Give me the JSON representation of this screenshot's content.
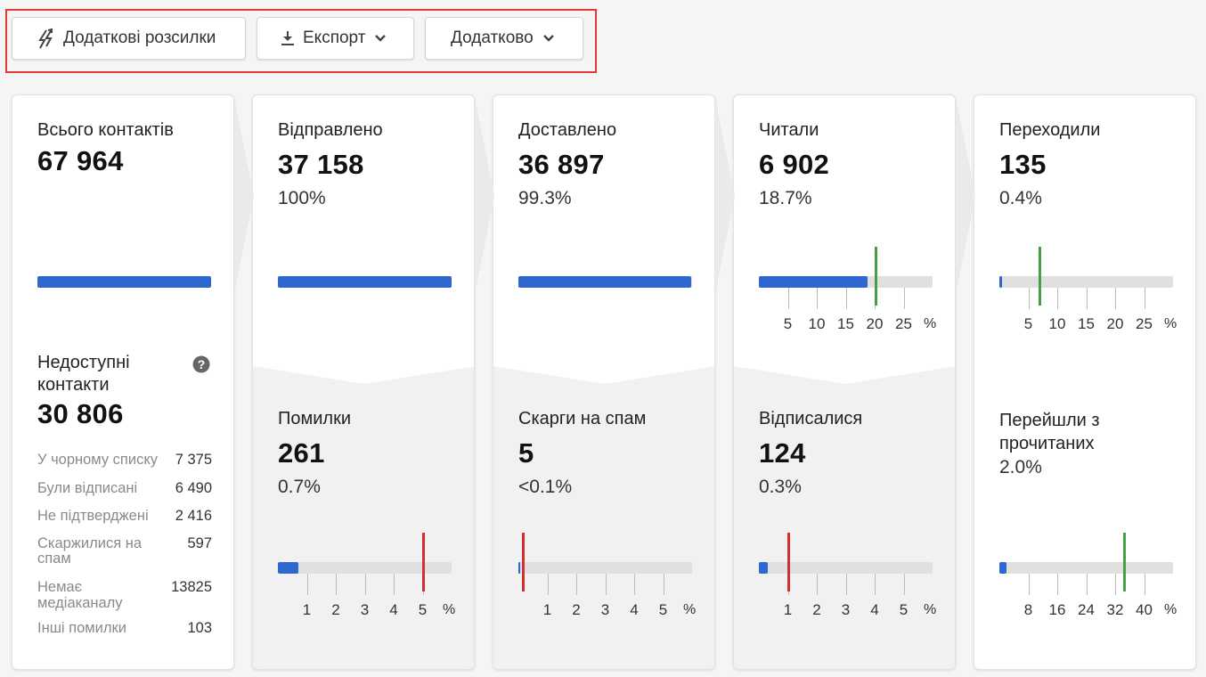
{
  "toolbar": {
    "extra_mailings_label": "Додаткові розсилки",
    "export_label": "Експорт",
    "more_label": "Додатково",
    "highlight_color": "#e53935"
  },
  "colors": {
    "bar_blue": "#2f67d1",
    "benchmark_green": "#43a047",
    "benchmark_red": "#d32f2f",
    "track_grey": "#e0e0e0"
  },
  "total": {
    "label": "Всього контактів",
    "value": "67 964",
    "fill_fraction": 1.0,
    "unavailable_label": "Недоступні контакти",
    "unavailable_value": "30 806",
    "help_icon": "question-circle-icon",
    "breakdown": [
      {
        "label": "У чорному списку",
        "value": "7 375"
      },
      {
        "label": "Були відписані",
        "value": "6 490"
      },
      {
        "label": "Не підтверджені",
        "value": "2 416"
      },
      {
        "label": "Скаржилися на спам",
        "value": "597"
      },
      {
        "label": "Немає медіаканалу",
        "value": "13825"
      },
      {
        "label": "Інші помилки",
        "value": "103"
      }
    ]
  },
  "sent": {
    "label": "Відправлено",
    "value": "37 158",
    "pct": "100%",
    "fill_fraction": 1.0,
    "sub": {
      "label": "Помилки",
      "value": "261",
      "pct": "0.7%",
      "ticks": [
        "1",
        "2",
        "3",
        "4",
        "5"
      ],
      "unit": "%",
      "fill_pct": 0.7,
      "benchmark_pct": 5,
      "scale_max": 6
    }
  },
  "delivered": {
    "label": "Доставлено",
    "value": "36 897",
    "pct": "99.3%",
    "fill_fraction": 0.993,
    "sub": {
      "label": "Скарги на спам",
      "value": "5",
      "pct": "<0.1%",
      "ticks": [
        "1",
        "2",
        "3",
        "4",
        "5"
      ],
      "unit": "%",
      "fill_pct": 0.02,
      "benchmark_pct": 0.15,
      "scale_max": 6
    }
  },
  "read": {
    "label": "Читали",
    "value": "6 902",
    "pct": "18.7%",
    "ticks": [
      "5",
      "10",
      "15",
      "20",
      "25"
    ],
    "unit": "%",
    "fill_pct": 18.7,
    "benchmark_pct": 20.2,
    "scale_max": 30,
    "sub": {
      "label": "Відписалися",
      "value": "124",
      "pct": "0.3%",
      "ticks": [
        "1",
        "2",
        "3",
        "4",
        "5"
      ],
      "unit": "%",
      "fill_pct": 0.3,
      "benchmark_pct": 1.0,
      "scale_max": 6
    }
  },
  "clicked": {
    "label": "Переходили",
    "value": "135",
    "pct": "0.4%",
    "ticks": [
      "5",
      "10",
      "15",
      "20",
      "25"
    ],
    "unit": "%",
    "fill_pct": 0.4,
    "benchmark_pct": 6.9,
    "scale_max": 30,
    "sub": {
      "label": "Перейшли з прочитаних",
      "pct": "2.0%",
      "ticks": [
        "8",
        "16",
        "24",
        "32",
        "40"
      ],
      "unit": "%",
      "fill_pct": 2.0,
      "benchmark_pct": 34.5,
      "scale_max": 48
    }
  }
}
